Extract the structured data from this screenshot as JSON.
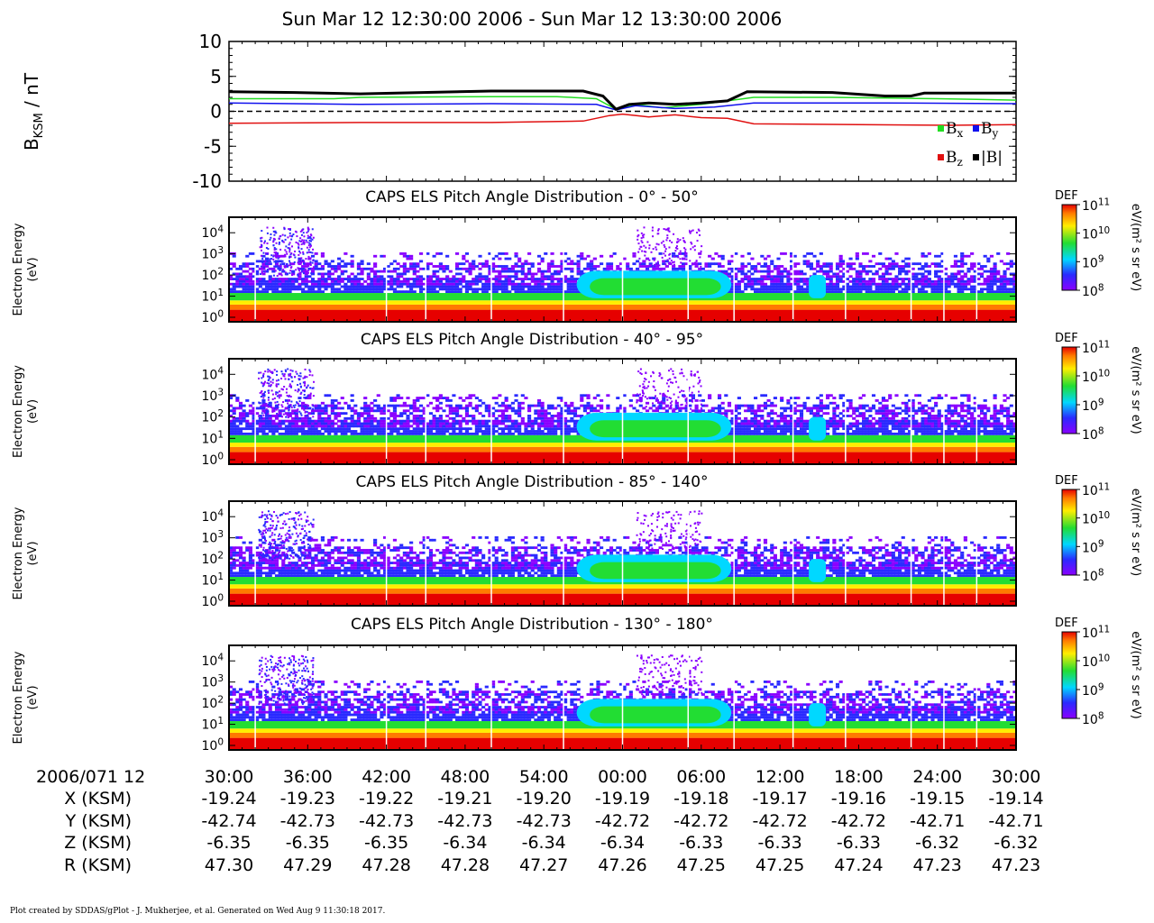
{
  "page_title": "Sun Mar 12 12:30:00 2006 - Sun Mar 12 13:30:00 2006",
  "footer": "Plot created by SDDAS/gPlot - J. Mukherjee, et al.  Generated on Wed Aug 9 11:30:18 2017.",
  "colors": {
    "bx": "#22dd22",
    "by": "#1010ee",
    "bz": "#e01010",
    "btot": "#000000"
  },
  "chart_data": [
    {
      "type": "line",
      "ylabel": "B_KSM / nT",
      "ylim": [
        -10,
        10
      ],
      "yticks": [
        "10",
        "5",
        "0",
        "-5",
        "-10"
      ],
      "xlim_minutes": [
        0,
        60
      ],
      "zero_line": "dashed",
      "legend": [
        "Bx",
        "By",
        "Bz",
        "|B|"
      ],
      "legend_placement": "bottom-right",
      "series": [
        {
          "name": "Bx",
          "x": [
            0,
            8,
            10,
            20,
            25,
            28,
            29.5,
            31,
            33,
            36,
            38,
            40,
            46,
            50,
            54,
            57,
            60
          ],
          "y": [
            1.8,
            1.8,
            2.0,
            2.1,
            2.1,
            1.8,
            0.3,
            1.0,
            0.5,
            1.0,
            1.5,
            2.0,
            2.0,
            1.9,
            1.8,
            1.7,
            1.6
          ]
        },
        {
          "name": "By",
          "x": [
            0,
            10,
            20,
            28,
            29.5,
            31,
            34,
            37,
            40,
            50,
            60
          ],
          "y": [
            1.2,
            1.0,
            1.1,
            1.0,
            0.2,
            0.8,
            0.4,
            0.6,
            1.2,
            1.2,
            1.1
          ]
        },
        {
          "name": "Bz",
          "x": [
            0,
            10,
            20,
            27,
            29,
            30,
            32,
            34,
            36,
            38,
            40,
            48,
            55,
            60
          ],
          "y": [
            -1.7,
            -1.6,
            -1.6,
            -1.4,
            -0.6,
            -0.4,
            -0.8,
            -0.5,
            -0.9,
            -1.0,
            -1.8,
            -1.9,
            -2.0,
            -1.9
          ]
        },
        {
          "name": "|B|",
          "x": [
            0,
            5,
            10,
            20,
            27,
            28.5,
            29.5,
            30.5,
            32,
            34,
            36,
            38,
            39.5,
            46,
            50,
            52,
            53,
            55,
            60
          ],
          "y": [
            2.8,
            2.7,
            2.5,
            2.9,
            2.9,
            2.2,
            0.3,
            1.0,
            1.2,
            1.0,
            1.2,
            1.5,
            2.8,
            2.7,
            2.2,
            2.2,
            2.6,
            2.6,
            2.6
          ]
        }
      ]
    },
    {
      "type": "heatmap",
      "title": "CAPS ELS Pitch Angle Distribution - 0° - 50°",
      "ylabel": "Electron Energy (eV)",
      "yscale": "log",
      "yticks": [
        "10^4",
        "10^3",
        "10^2",
        "10^1",
        "10^0"
      ],
      "zlabel": "eV/(m² s sr eV)",
      "zname": "DEF",
      "zrange": [
        100000000.0,
        100000000000.0
      ],
      "zticks": [
        "10^11",
        "10^10",
        "10^9",
        "10^8"
      ]
    },
    {
      "type": "heatmap",
      "title": "CAPS ELS Pitch Angle Distribution - 40° - 95°",
      "ylabel": "Electron Energy (eV)",
      "yscale": "log",
      "yticks": [
        "10^4",
        "10^3",
        "10^2",
        "10^1",
        "10^0"
      ],
      "zlabel": "eV/(m² s sr eV)",
      "zname": "DEF",
      "zrange": [
        100000000.0,
        100000000000.0
      ],
      "zticks": [
        "10^11",
        "10^10",
        "10^9",
        "10^8"
      ]
    },
    {
      "type": "heatmap",
      "title": "CAPS ELS Pitch Angle Distribution - 85° - 140°",
      "ylabel": "Electron Energy (eV)",
      "yscale": "log",
      "yticks": [
        "10^4",
        "10^3",
        "10^2",
        "10^1",
        "10^0"
      ],
      "zlabel": "eV/(m² s sr eV)",
      "zname": "DEF",
      "zrange": [
        100000000.0,
        100000000000.0
      ],
      "zticks": [
        "10^11",
        "10^10",
        "10^9",
        "10^8"
      ]
    },
    {
      "type": "heatmap",
      "title": "CAPS ELS Pitch Angle Distribution - 130° - 180°",
      "ylabel": "Electron Energy (eV)",
      "yscale": "log",
      "yticks": [
        "10^4",
        "10^3",
        "10^2",
        "10^1",
        "10^0"
      ],
      "zlabel": "eV/(m² s sr eV)",
      "zname": "DEF",
      "zrange": [
        100000000.0,
        100000000000.0
      ],
      "zticks": [
        "10^11",
        "10^10",
        "10^9",
        "10^8"
      ]
    }
  ],
  "ephemeris": {
    "row_labels": [
      "2006/071 12",
      "X (KSM)",
      "Y (KSM)",
      "Z (KSM)",
      "R (KSM)"
    ],
    "times": [
      "30:00",
      "36:00",
      "42:00",
      "48:00",
      "54:00",
      "00:00",
      "06:00",
      "12:00",
      "18:00",
      "24:00",
      "30:00"
    ],
    "X": [
      "-19.24",
      "-19.23",
      "-19.22",
      "-19.21",
      "-19.20",
      "-19.19",
      "-19.18",
      "-19.17",
      "-19.16",
      "-19.15",
      "-19.14"
    ],
    "Y": [
      "-42.74",
      "-42.73",
      "-42.73",
      "-42.73",
      "-42.73",
      "-42.72",
      "-42.72",
      "-42.72",
      "-42.72",
      "-42.71",
      "-42.71"
    ],
    "Z": [
      "-6.35",
      "-6.35",
      "-6.35",
      "-6.34",
      "-6.34",
      "-6.34",
      "-6.33",
      "-6.33",
      "-6.33",
      "-6.32",
      "-6.32"
    ],
    "R": [
      "47.30",
      "47.29",
      "47.28",
      "47.28",
      "47.27",
      "47.26",
      "47.25",
      "47.25",
      "47.24",
      "47.23",
      "47.23"
    ]
  }
}
